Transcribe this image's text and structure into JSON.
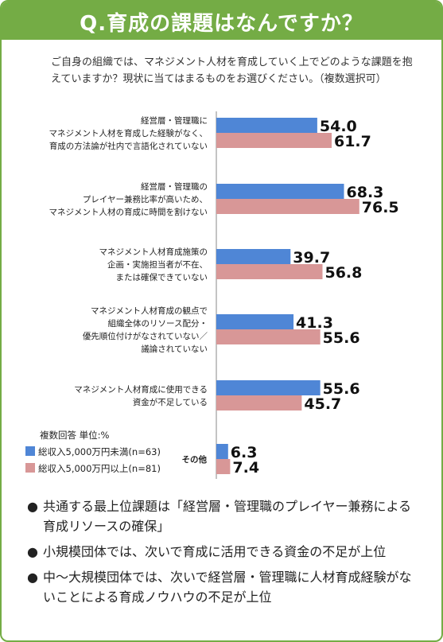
{
  "title": "Q.育成の課題はなんですか？",
  "question": "ご自身の組織では、マネジメント人材を育成していく上でどのような課題を抱えていますか？現状に当てはまるものをお選びください。（複数選択可）",
  "colors": {
    "frame": "#74ac45",
    "series_small": "#4f86d6",
    "series_large": "#d89797"
  },
  "chart_data": {
    "type": "bar",
    "orientation": "horizontal",
    "categories": [
      [
        "経営層・管理職に",
        "マネジメント人材を育成した経験がなく、",
        "育成の方法論が社内で言語化されていない"
      ],
      [
        "経営層・管理職の",
        "プレイヤー兼務比率が高いため、",
        "マネジメント人材の育成に時間を割けない"
      ],
      [
        "マネジメント人材育成施策の",
        "企画・実施担当者が不在、",
        "または確保できていない"
      ],
      [
        "マネジメント人材育成の観点で",
        "組織全体のリソース配分・",
        "優先順位付けがなされていない／",
        "議論されていない"
      ],
      [
        "マネジメント人材育成に使用できる",
        "資金が不足している"
      ],
      [
        "その他"
      ]
    ],
    "series": [
      {
        "name": "総収入5,000万円未満(n=63)",
        "values": [
          54.0,
          68.3,
          39.7,
          41.3,
          55.6,
          6.3
        ]
      },
      {
        "name": "総収入5,000万円以上(n=81)",
        "values": [
          61.7,
          76.5,
          56.8,
          55.6,
          45.7,
          7.4
        ]
      }
    ],
    "note": "複数回答 単位:%",
    "xlim": [
      0,
      100
    ]
  },
  "bullets": [
    "共通する最上位課題は「経営層・管理職のプレイヤー兼務による育成リソースの確保」",
    "小規模団体では、次いで育成に活用できる資金の不足が上位",
    "中〜大規模団体では、次いで経営層・管理職に人材育成経験がないことによる育成ノウハウの不足が上位"
  ],
  "bullet_glyph": "●"
}
